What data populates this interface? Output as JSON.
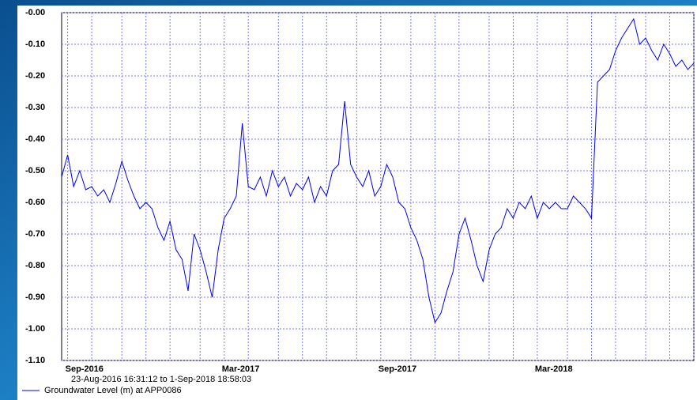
{
  "chart_data": {
    "type": "line",
    "subtitle": "23-Aug-2016 16:31:12 to  1-Sep-2018 18:58:03",
    "categories": [
      null,
      "Sep-2016",
      null,
      null,
      null,
      null,
      null,
      null,
      null,
      null,
      null,
      null,
      null,
      null,
      null,
      null,
      null,
      null,
      null,
      null,
      null,
      null,
      null,
      null,
      null,
      null,
      null,
      "Mar-2017",
      null,
      null,
      null,
      null,
      null,
      null,
      null,
      null,
      null,
      null,
      null,
      null,
      null,
      null,
      null,
      null,
      null,
      null,
      null,
      null,
      null,
      null,
      null,
      null,
      null,
      "Sep-2017",
      null,
      null,
      null,
      null,
      null,
      null,
      null,
      null,
      null,
      null,
      null,
      null,
      null,
      null,
      null,
      null,
      null,
      null,
      null,
      null,
      null,
      null,
      null,
      null,
      null,
      "Mar-2018",
      null,
      null,
      null,
      null,
      null,
      null,
      null,
      null,
      null,
      null,
      null,
      null,
      null,
      null,
      null,
      null,
      null,
      null,
      null,
      null,
      null,
      null,
      null,
      null,
      null,
      null
    ],
    "series": [
      {
        "name": "Groundwater Level (m) at APP0086",
        "color": "#0000ee",
        "values": [
          -0.52,
          -0.45,
          -0.55,
          -0.5,
          -0.56,
          -0.55,
          -0.58,
          -0.56,
          -0.6,
          -0.54,
          -0.47,
          -0.53,
          -0.58,
          -0.62,
          -0.6,
          -0.62,
          -0.68,
          -0.72,
          -0.66,
          -0.75,
          -0.78,
          -0.88,
          -0.7,
          -0.75,
          -0.82,
          -0.9,
          -0.75,
          -0.65,
          -0.62,
          -0.58,
          -0.35,
          -0.55,
          -0.56,
          -0.52,
          -0.58,
          -0.5,
          -0.55,
          -0.52,
          -0.58,
          -0.54,
          -0.56,
          -0.52,
          -0.6,
          -0.55,
          -0.58,
          -0.5,
          -0.48,
          -0.28,
          -0.48,
          -0.52,
          -0.55,
          -0.5,
          -0.58,
          -0.55,
          -0.48,
          -0.52,
          -0.6,
          -0.62,
          -0.68,
          -0.72,
          -0.78,
          -0.9,
          -0.98,
          -0.95,
          -0.88,
          -0.82,
          -0.7,
          -0.65,
          -0.72,
          -0.8,
          -0.85,
          -0.75,
          -0.7,
          -0.68,
          -0.62,
          -0.65,
          -0.6,
          -0.62,
          -0.58,
          -0.65,
          -0.6,
          -0.62,
          -0.6,
          -0.62,
          -0.62,
          -0.58,
          -0.6,
          -0.62,
          -0.65,
          -0.22,
          -0.2,
          -0.18,
          -0.12,
          -0.08,
          -0.05,
          -0.02,
          -0.1,
          -0.08,
          -0.12,
          -0.15,
          -0.1,
          -0.13,
          -0.17,
          -0.15,
          -0.18,
          -0.16
        ]
      }
    ],
    "ylim": [
      -1.1,
      0
    ],
    "yticks": [
      {
        "value": 0,
        "label": "-0.00"
      },
      {
        "value": -0.1,
        "label": "-0.10"
      },
      {
        "value": -0.2,
        "label": "-0.20"
      },
      {
        "value": -0.3,
        "label": "-0.30"
      },
      {
        "value": -0.4,
        "label": "-0.40"
      },
      {
        "value": -0.5,
        "label": "-0.50"
      },
      {
        "value": -0.6,
        "label": "-0.60"
      },
      {
        "value": -0.7,
        "label": "-0.70"
      },
      {
        "value": -0.8,
        "label": "-0.80"
      },
      {
        "value": -0.9,
        "label": "-0.90"
      },
      {
        "value": -1.0,
        "label": "-1.00"
      },
      {
        "value": -1.1,
        "label": "-1.10"
      }
    ],
    "grid": true
  }
}
